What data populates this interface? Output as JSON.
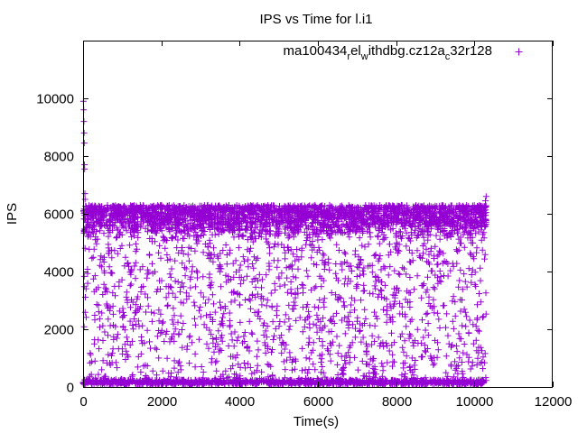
{
  "chart_data": {
    "type": "scatter",
    "title": "IPS vs Time for l.i1",
    "xlabel": "Time(s)",
    "ylabel": "IPS",
    "xlim": [
      0,
      12000
    ],
    "ylim": [
      0,
      12000
    ],
    "x_ticks": [
      "0",
      "2000",
      "4000",
      "6000",
      "8000",
      "10000",
      "12000"
    ],
    "y_ticks": [
      "0",
      "2000",
      "4000",
      "6000",
      "8000",
      "10000"
    ],
    "x_tick_values": [
      0,
      2000,
      4000,
      6000,
      8000,
      10000,
      12000
    ],
    "y_tick_values": [
      0,
      2000,
      4000,
      6000,
      8000,
      10000
    ],
    "grid": false,
    "legend_position": "top-right",
    "series": [
      {
        "name_parts": [
          {
            "text": "ma100434",
            "shift": "none"
          },
          {
            "text": "r",
            "shift": "sub"
          },
          {
            "text": "el",
            "shift": "none"
          },
          {
            "text": "w",
            "shift": "sub"
          },
          {
            "text": "ithdbg.cz12a",
            "shift": "none"
          },
          {
            "text": "c",
            "shift": "sub"
          },
          {
            "text": "32r128",
            "shift": "none"
          }
        ],
        "color": "#9400d3",
        "marker": "plus",
        "x_range": [
          0,
          10300
        ],
        "main_band": [
          5000,
          6300
        ],
        "base_band": [
          80,
          250
        ],
        "scatter_range": [
          200,
          5000
        ],
        "early_points": [
          {
            "x": 10,
            "y": 9900
          },
          {
            "x": 15,
            "y": 9600
          },
          {
            "x": 20,
            "y": 9200
          },
          {
            "x": 25,
            "y": 8800
          },
          {
            "x": 30,
            "y": 8450
          },
          {
            "x": 35,
            "y": 7700
          },
          {
            "x": 40,
            "y": 7550
          },
          {
            "x": 45,
            "y": 6700
          },
          {
            "x": 50,
            "y": 6500
          },
          {
            "x": 10300,
            "y": 6600
          },
          {
            "x": 10280,
            "y": 6450
          }
        ]
      }
    ]
  }
}
